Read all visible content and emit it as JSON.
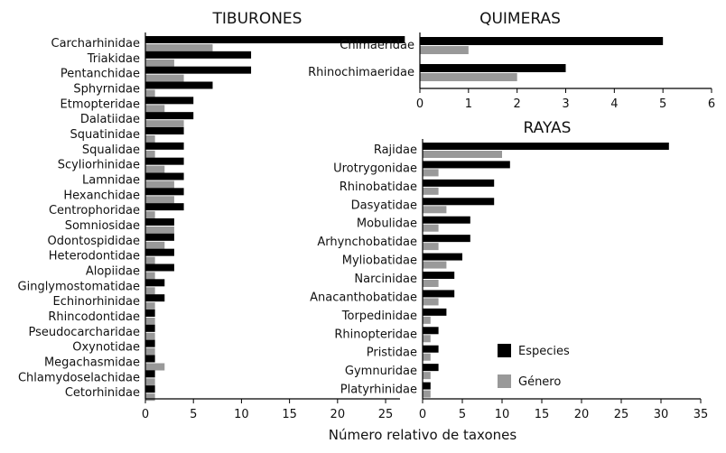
{
  "chart_data": [
    {
      "type": "bar",
      "orientation": "horizontal",
      "title": "TIBURONES",
      "xlim": [
        0,
        26.5
      ],
      "xticks": [
        0,
        5,
        10,
        15,
        20,
        25
      ],
      "categories": [
        "Carcharhinidae",
        "Triakidae",
        "Pentanchidae",
        "Sphyrnidae",
        "Etmopteridae",
        "Dalatiidae",
        "Squatinidae",
        "Squalidae",
        "Scyliorhinidae",
        "Lamnidae",
        "Hexanchidae",
        "Centrophoridae",
        "Somniosidae",
        "Odontospididae",
        "Heterodontidae",
        "Alopiidae",
        "Ginglymostomatidae",
        "Echinorhinidae",
        "Rhincodontidae",
        "Pseudocarcharidae",
        "Oxynotidae",
        "Megachasmidae",
        "Chlamydoselachidae",
        "Cetorhinidae"
      ],
      "series": [
        {
          "name": "Especies",
          "values": [
            27,
            11,
            11,
            7,
            5,
            5,
            4,
            4,
            4,
            4,
            4,
            4,
            3,
            3,
            3,
            3,
            2,
            2,
            1,
            1,
            1,
            1,
            1,
            1
          ]
        },
        {
          "name": "Género",
          "values": [
            7,
            3,
            4,
            1,
            2,
            4,
            1,
            1,
            2,
            3,
            3,
            1,
            3,
            2,
            1,
            1,
            1,
            1,
            1,
            1,
            1,
            2,
            1,
            1
          ]
        }
      ]
    },
    {
      "type": "bar",
      "orientation": "horizontal",
      "title": "QUIMERAS",
      "xlim": [
        0,
        6
      ],
      "xticks": [
        0,
        1,
        2,
        3,
        4,
        5,
        6
      ],
      "categories": [
        "Chimaeridae",
        "Rhinochimaeridae"
      ],
      "series": [
        {
          "name": "Especies",
          "values": [
            5,
            3
          ]
        },
        {
          "name": "Género",
          "values": [
            1,
            2
          ]
        }
      ]
    },
    {
      "type": "bar",
      "orientation": "horizontal",
      "title": "RAYAS",
      "xlim": [
        0,
        35
      ],
      "xticks": [
        0,
        5,
        10,
        15,
        20,
        25,
        30,
        35
      ],
      "categories": [
        "Rajidae",
        "Urotrygonidae",
        "Rhinobatidae",
        "Dasyatidae",
        "Mobulidae",
        "Arhynchobatidae",
        "Myliobatidae",
        "Narcinidae",
        "Anacanthobatidae",
        "Torpedinidae",
        "Rhinopteridae",
        "Pristidae",
        "Gymnuridae",
        "Platyrhinidae"
      ],
      "series": [
        {
          "name": "Especies",
          "values": [
            31,
            11,
            9,
            9,
            6,
            6,
            5,
            4,
            4,
            3,
            2,
            2,
            2,
            1
          ]
        },
        {
          "name": "Género",
          "values": [
            10,
            2,
            2,
            3,
            2,
            2,
            3,
            2,
            2,
            1,
            1,
            1,
            1,
            1
          ]
        }
      ]
    }
  ],
  "xlabel": "Número relativo de taxones",
  "legend": {
    "placement": "bottom-right",
    "items": [
      {
        "label": "Especies",
        "color": "#000000"
      },
      {
        "label": "Género",
        "color": "#999999"
      }
    ]
  },
  "colors": {
    "especies": "#000000",
    "genero": "#999999",
    "axis": "#000000"
  }
}
